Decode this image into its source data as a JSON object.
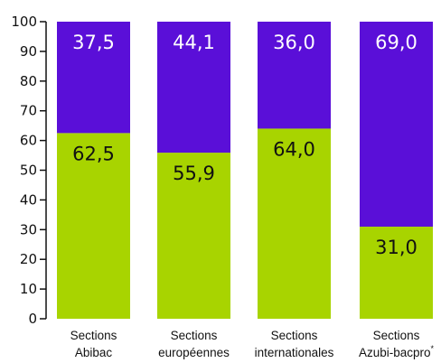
{
  "chart_data": {
    "type": "bar",
    "stacked": true,
    "categories": [
      {
        "line1": "Sections",
        "line2": "Abibac",
        "sup": ""
      },
      {
        "line1": "Sections",
        "line2": "européennes",
        "sup": ""
      },
      {
        "line1": "Sections",
        "line2": "internationales",
        "sup": ""
      },
      {
        "line1": "Sections",
        "line2": "Azubi-bacpro",
        "sup": "*"
      }
    ],
    "series": [
      {
        "values": [
          62.5,
          55.9,
          64.0,
          31.0
        ],
        "labels": [
          "62,5",
          "55,9",
          "64,0",
          "31,0"
        ],
        "color": "#a8d400"
      },
      {
        "values": [
          37.5,
          44.1,
          36.0,
          69.0
        ],
        "labels": [
          "37,5",
          "44,1",
          "36,0",
          "69,0"
        ],
        "color": "#5a0fd8"
      }
    ],
    "ylim": [
      0,
      100
    ],
    "yticks": [
      "0",
      "10",
      "20",
      "30",
      "40",
      "50",
      "60",
      "70",
      "80",
      "90",
      "100"
    ],
    "grid": false,
    "legend": "none"
  }
}
